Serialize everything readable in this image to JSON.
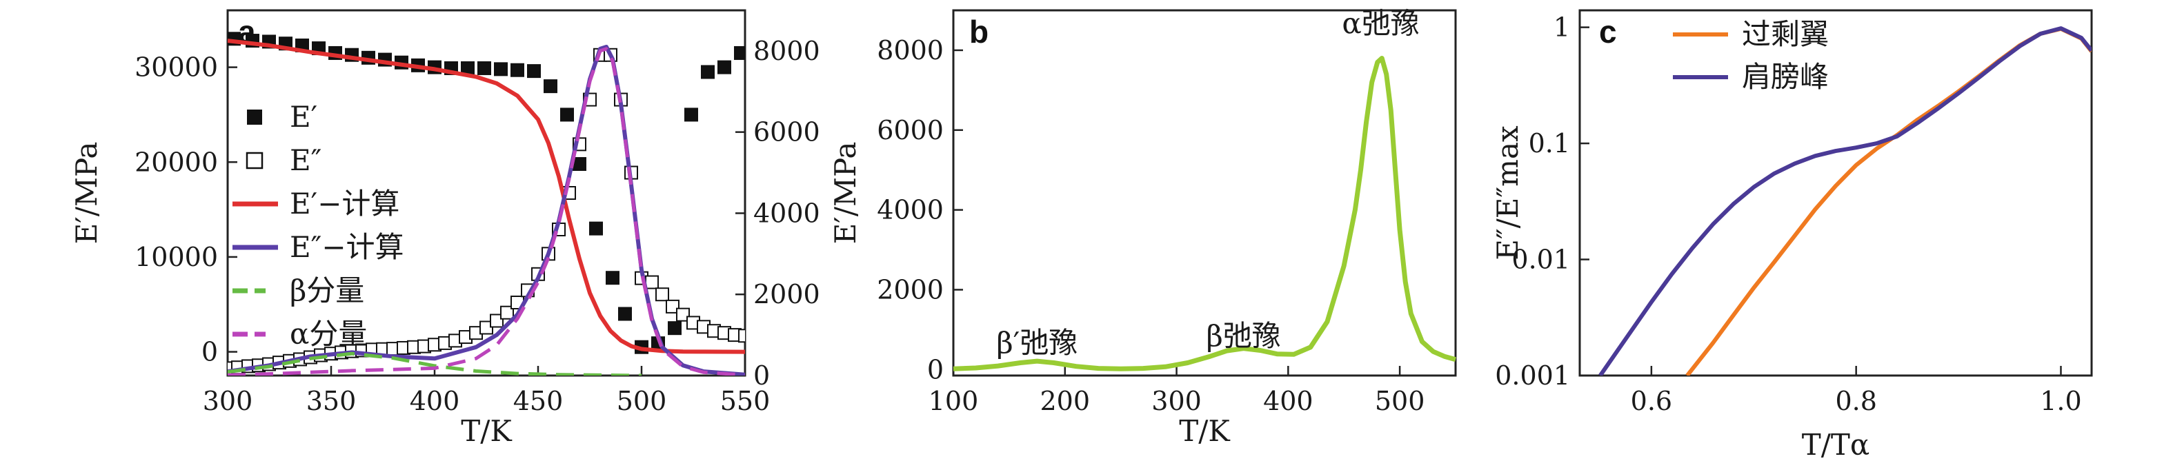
{
  "chart_data": [
    {
      "panel": "a",
      "type": "line",
      "xlabel": "T/K",
      "ylabel": "E′/MPa",
      "xlim": [
        300,
        550
      ],
      "ylim": [
        -2500,
        36000
      ],
      "y2lim": [
        0,
        9000
      ],
      "xticks": [
        300,
        350,
        400,
        450,
        500,
        550
      ],
      "yticks": [
        0,
        10000,
        20000,
        30000
      ],
      "y2ticks": [
        0,
        2000,
        4000,
        6000,
        8000
      ],
      "legend": [
        {
          "label": "E′",
          "color": "#111111",
          "marker": "filled-square"
        },
        {
          "label": "E″",
          "color": "#111111",
          "marker": "open-square"
        },
        {
          "label": "E′−计算",
          "color": "#e03030",
          "marker": "line"
        },
        {
          "label": "E″−计算",
          "color": "#5a3fa8",
          "marker": "line"
        },
        {
          "label": "β分量",
          "color": "#66bb44",
          "marker": "dash"
        },
        {
          "label": "α分量",
          "color": "#bb44bb",
          "marker": "dash"
        }
      ],
      "series": [
        {
          "name": "E′",
          "axis": "left",
          "x": [
            303,
            312,
            320,
            328,
            336,
            344,
            352,
            360,
            368,
            376,
            384,
            392,
            400,
            408,
            416,
            424,
            432,
            440,
            448,
            456,
            464,
            470,
            478,
            486,
            492,
            500,
            508,
            516,
            524,
            532,
            540,
            548
          ],
          "y": [
            33000,
            32800,
            32700,
            32500,
            32300,
            32000,
            31500,
            31300,
            31000,
            30800,
            30500,
            30200,
            30000,
            29900,
            29900,
            29900,
            29800,
            29700,
            29600,
            28000,
            25000,
            19800,
            13000,
            7800,
            4000,
            500,
            900,
            2500,
            25000,
            29500,
            30000,
            31500
          ]
        },
        {
          "name": "E″",
          "axis": "right",
          "x": [
            300,
            305,
            310,
            315,
            320,
            325,
            330,
            335,
            340,
            345,
            350,
            355,
            360,
            365,
            370,
            375,
            380,
            385,
            390,
            395,
            400,
            405,
            410,
            415,
            420,
            425,
            430,
            435,
            440,
            445,
            450,
            455,
            460,
            465,
            470,
            475,
            480,
            485,
            490,
            495,
            500,
            505,
            510,
            515,
            520,
            525,
            530,
            535,
            540,
            545,
            550
          ],
          "y": [
            180,
            200,
            230,
            250,
            280,
            320,
            360,
            400,
            450,
            500,
            540,
            570,
            600,
            620,
            640,
            650,
            660,
            680,
            700,
            720,
            760,
            800,
            860,
            950,
            1050,
            1180,
            1350,
            1550,
            1800,
            2100,
            2500,
            3000,
            3600,
            4500,
            5700,
            6800,
            7900,
            7900,
            6800,
            5000,
            2400,
            2300,
            2000,
            1700,
            1500,
            1300,
            1200,
            1100,
            1050,
            1000,
            980
          ]
        },
        {
          "name": "E′−计算",
          "axis": "left",
          "x": [
            300,
            320,
            340,
            360,
            380,
            400,
            420,
            430,
            440,
            450,
            455,
            460,
            465,
            470,
            475,
            480,
            485,
            490,
            495,
            500,
            510,
            520,
            530,
            550
          ],
          "y": [
            32800,
            32300,
            31600,
            31000,
            30400,
            29800,
            29000,
            28300,
            27000,
            24500,
            22000,
            18500,
            14000,
            9800,
            6200,
            3800,
            2200,
            1200,
            600,
            300,
            100,
            30,
            10,
            0
          ]
        },
        {
          "name": "E″−计算",
          "axis": "right",
          "x": [
            300,
            320,
            340,
            360,
            380,
            400,
            420,
            430,
            440,
            450,
            455,
            460,
            465,
            470,
            475,
            480,
            483,
            486,
            490,
            495,
            500,
            505,
            510,
            520,
            530,
            550
          ],
          "y": [
            100,
            250,
            470,
            570,
            470,
            420,
            700,
            1000,
            1500,
            2400,
            3000,
            3800,
            4900,
            6100,
            7300,
            8050,
            8100,
            7800,
            6700,
            4700,
            2600,
            1400,
            700,
            250,
            100,
            20
          ]
        },
        {
          "name": "β分量",
          "axis": "right",
          "x": [
            300,
            320,
            340,
            360,
            380,
            400,
            420,
            440,
            460,
            480,
            500
          ],
          "y": [
            90,
            220,
            420,
            540,
            430,
            240,
            110,
            50,
            20,
            10,
            0
          ]
        },
        {
          "name": "α分量",
          "axis": "right",
          "x": [
            300,
            320,
            340,
            360,
            380,
            400,
            420,
            430,
            440,
            450,
            455,
            460,
            465,
            470,
            475,
            480,
            483,
            486,
            490,
            495,
            500,
            505,
            510,
            520,
            530,
            550
          ],
          "y": [
            10,
            40,
            80,
            120,
            150,
            180,
            420,
            750,
            1400,
            2300,
            2900,
            3750,
            4850,
            6050,
            7250,
            8000,
            8050,
            7750,
            6650,
            4650,
            2550,
            1350,
            650,
            220,
            80,
            10
          ]
        }
      ]
    },
    {
      "panel": "b",
      "type": "line",
      "xlabel": "T/K",
      "ylabel": "E′/MPa",
      "xlim": [
        100,
        550
      ],
      "ylim": [
        -150,
        9000
      ],
      "xticks": [
        100,
        200,
        300,
        400,
        500
      ],
      "yticks": [
        0,
        2000,
        4000,
        6000,
        8000
      ],
      "annotations": [
        "β′弛豫",
        "β弛豫",
        "α弛豫"
      ],
      "series": [
        {
          "name": "",
          "color": "#99cc33",
          "x": [
            100,
            120,
            140,
            160,
            175,
            190,
            210,
            230,
            250,
            270,
            290,
            310,
            330,
            345,
            360,
            375,
            390,
            405,
            420,
            435,
            450,
            460,
            465,
            470,
            475,
            480,
            484,
            488,
            492,
            496,
            500,
            505,
            510,
            520,
            530,
            540,
            550
          ],
          "y": [
            20,
            40,
            90,
            170,
            210,
            170,
            80,
            30,
            20,
            30,
            70,
            170,
            330,
            470,
            530,
            480,
            390,
            380,
            560,
            1200,
            2600,
            4000,
            5000,
            6200,
            7200,
            7700,
            7800,
            7400,
            6500,
            5000,
            3500,
            2200,
            1400,
            700,
            450,
            330,
            250
          ]
        }
      ]
    },
    {
      "panel": "c",
      "type": "line",
      "xlabel": "T/Tα",
      "ylabel": "E″/E″max",
      "xlim": [
        0.53,
        1.03
      ],
      "ylim": [
        0.001,
        1.4
      ],
      "yscale": "log",
      "xticks": [
        0.6,
        0.8,
        1.0
      ],
      "ytick_labels": [
        "0.001",
        "0.01",
        "0.1",
        "1"
      ],
      "legend": [
        {
          "label": "过剩翼",
          "color": "#f07a20"
        },
        {
          "label": "肩膀峰",
          "color": "#4a3a96"
        }
      ],
      "series": [
        {
          "name": "过剩翼",
          "color": "#f07a20",
          "x": [
            0.635,
            0.66,
            0.68,
            0.7,
            0.72,
            0.74,
            0.76,
            0.78,
            0.8,
            0.82,
            0.84,
            0.86,
            0.88,
            0.9,
            0.92,
            0.94,
            0.96,
            0.98,
            1.0,
            1.02,
            1.03
          ],
          "y": [
            0.001,
            0.0019,
            0.0033,
            0.0057,
            0.0095,
            0.016,
            0.027,
            0.043,
            0.065,
            0.09,
            0.118,
            0.16,
            0.21,
            0.28,
            0.38,
            0.52,
            0.7,
            0.88,
            0.97,
            0.8,
            0.62
          ]
        },
        {
          "name": "肩膀峰",
          "color": "#4a3a96",
          "x": [
            0.55,
            0.58,
            0.6,
            0.62,
            0.64,
            0.66,
            0.68,
            0.7,
            0.72,
            0.74,
            0.76,
            0.78,
            0.8,
            0.82,
            0.84,
            0.86,
            0.88,
            0.9,
            0.92,
            0.94,
            0.96,
            0.98,
            1.0,
            1.02,
            1.03
          ],
          "y": [
            0.001,
            0.0024,
            0.0043,
            0.0075,
            0.0125,
            0.02,
            0.03,
            0.042,
            0.055,
            0.067,
            0.078,
            0.086,
            0.092,
            0.1,
            0.115,
            0.15,
            0.2,
            0.27,
            0.37,
            0.51,
            0.69,
            0.88,
            0.98,
            0.81,
            0.63
          ]
        }
      ]
    }
  ]
}
